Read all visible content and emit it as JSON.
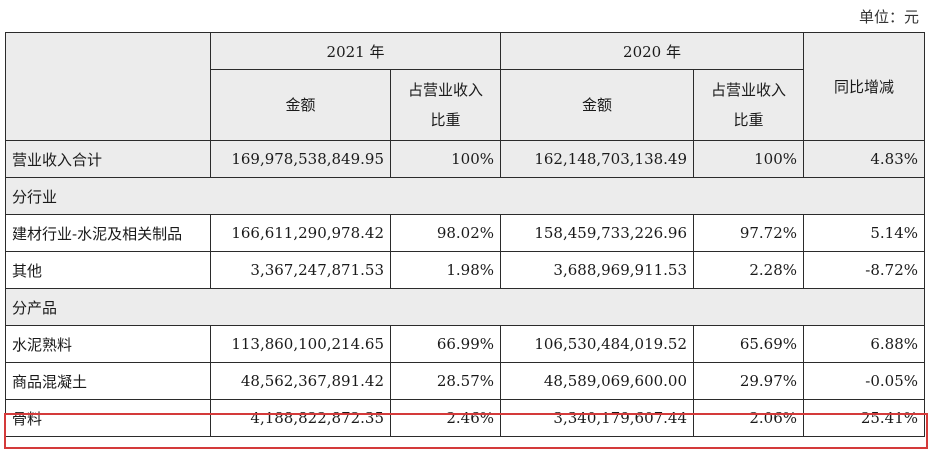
{
  "unit_label": "单位：元",
  "header": {
    "year_2021": "2021 年",
    "year_2020": "2020 年",
    "amount": "金额",
    "share_line1": "占营业收入",
    "share_line2": "比重",
    "yoy": "同比增减"
  },
  "total": {
    "label": "营业收入合计",
    "amt_2021": "169,978,538,849.95",
    "pct_2021": "100%",
    "amt_2020": "162,148,703,138.49",
    "pct_2020": "100%",
    "yoy": "4.83%"
  },
  "section_industry": "分行业",
  "industry_rows": [
    {
      "label": "建材行业-水泥及相关制品",
      "amt_2021": "166,611,290,978.42",
      "pct_2021": "98.02%",
      "amt_2020": "158,459,733,226.96",
      "pct_2020": "97.72%",
      "yoy": "5.14%"
    },
    {
      "label": "其他",
      "amt_2021": "3,367,247,871.53",
      "pct_2021": "1.98%",
      "amt_2020": "3,688,969,911.53",
      "pct_2020": "2.28%",
      "yoy": "-8.72%"
    }
  ],
  "section_product": "分产品",
  "product_rows": [
    {
      "label": "水泥熟料",
      "amt_2021": "113,860,100,214.65",
      "pct_2021": "66.99%",
      "amt_2020": "106,530,484,019.52",
      "pct_2020": "65.69%",
      "yoy": "6.88%"
    },
    {
      "label": "商品混凝土",
      "amt_2021": "48,562,367,891.42",
      "pct_2021": "28.57%",
      "amt_2020": "48,589,069,600.00",
      "pct_2020": "29.97%",
      "yoy": "-0.05%"
    },
    {
      "label": "骨料",
      "amt_2021": "4,188,822,872.35",
      "pct_2021": "2.46%",
      "amt_2020": "3,340,179,607.44",
      "pct_2020": "2.06%",
      "yoy": "25.41%"
    }
  ],
  "highlight_color": "#d43a3a"
}
